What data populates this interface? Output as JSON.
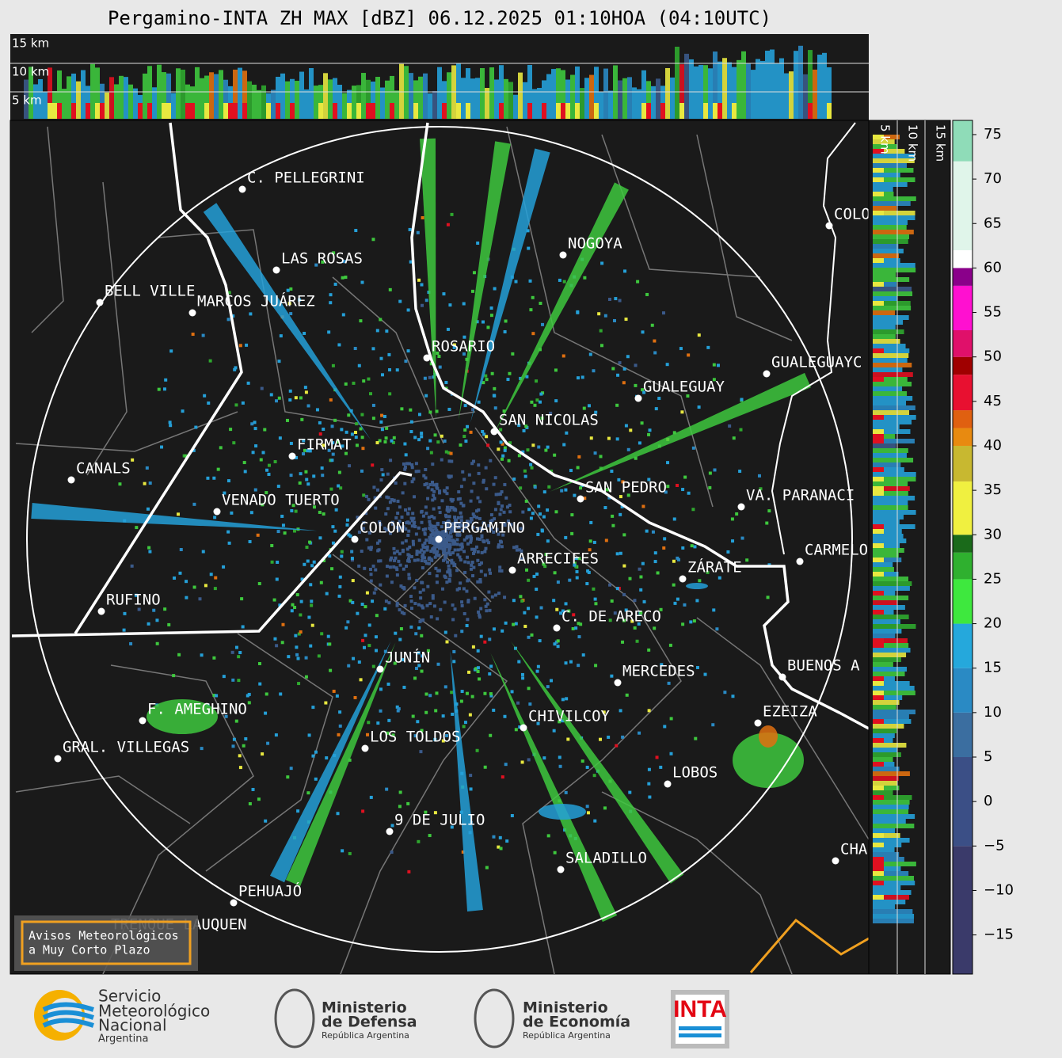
{
  "title": "Pergamino-INTA ZH MAX [dBZ] 06.12.2025 01:10HOA (04:10UTC)",
  "heights": [
    "15 km",
    "10 km",
    "5 km"
  ],
  "cities": [
    "C. PELLEGRINI",
    "LAS ROSAS",
    "BELL VILLE",
    "MARCOS JUÁREZ",
    "NOGOYA",
    "ROSARIO",
    "COLO",
    "GUALEGUAY",
    "GUALEGUAYC",
    "SAN NICOLAS",
    "FIRMAT",
    "CANALS",
    "VENADO TUERTO",
    "SAN PEDRO",
    "VA. PARANACI",
    "COLON",
    "PERGAMINO",
    "ARRECIFES",
    "CARMELO",
    "ZÁRATE",
    "RUFINO",
    "C. DE ARECO",
    "JUNÍN",
    "MERCEDES",
    "BUENOS A",
    "F. AMEGHINO",
    "CHIVILCOY",
    "EZEIZA",
    "GRAL. VILLEGAS",
    "LOS TOLDOS",
    "LOBOS",
    "9 DE JULIO",
    "CHA",
    "SALADILLO",
    "PEHUAJÓ",
    "TRENQUE LAUQUEN"
  ],
  "colorbar": {
    "lim": [
      -19.4,
      76.6
    ],
    "ticks": [
      {
        "value": -15,
        "label": "−15"
      },
      {
        "value": -10,
        "label": "−10"
      },
      {
        "value": -5,
        "label": "−5"
      },
      0,
      5,
      10,
      15,
      20,
      25,
      30,
      35,
      40,
      45,
      50,
      55,
      60,
      65,
      70,
      75
    ]
  },
  "warning": [
    "Avisos Meteorológicos",
    "a Muy Corto Plazo"
  ],
  "logos": {
    "smn": [
      "Servicio",
      "Meteorológico",
      "Nacional",
      "Argentina"
    ],
    "defensa": [
      "Ministerio",
      "de Defensa",
      "República Argentina"
    ],
    "economia": [
      "Ministerio",
      "de Economía",
      "República Argentina"
    ],
    "inta": "INTA"
  }
}
